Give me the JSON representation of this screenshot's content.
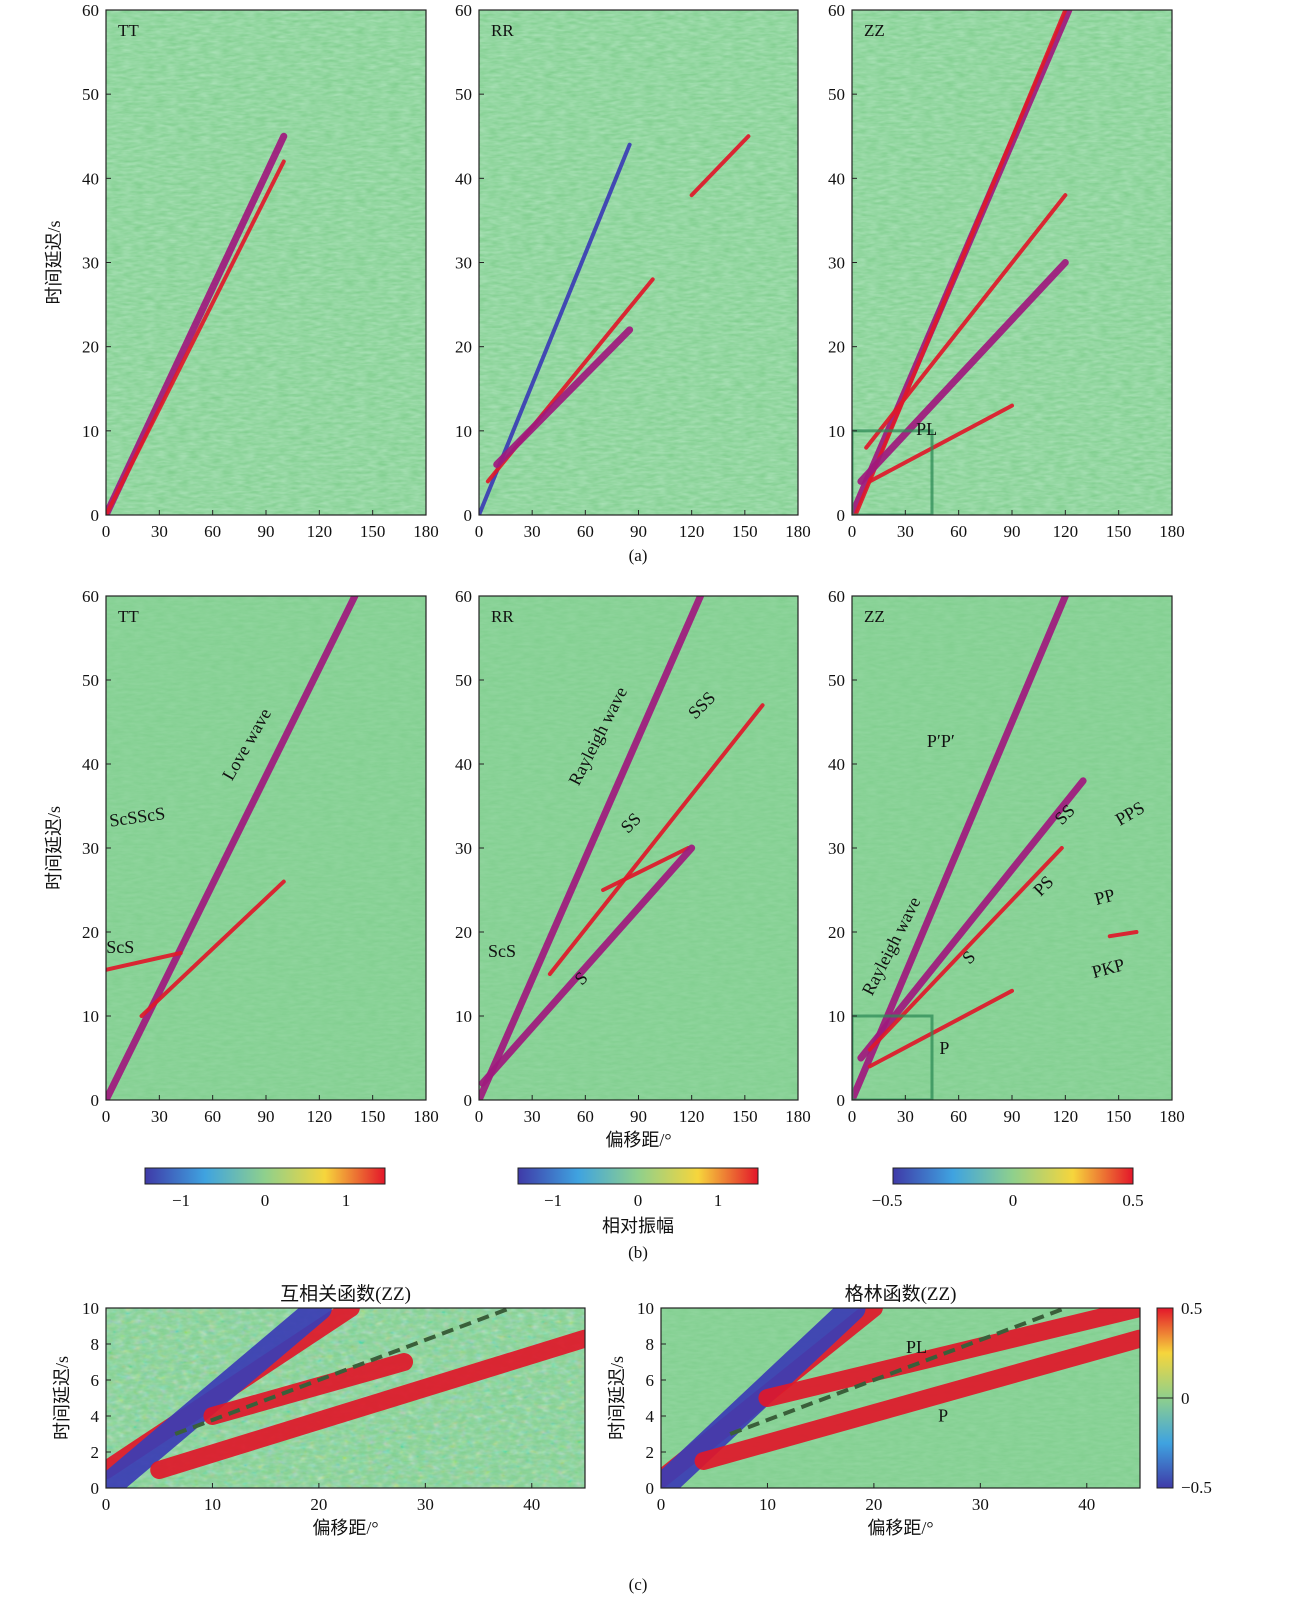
{
  "figure": {
    "subcaptions": [
      "(a)",
      "(b)",
      "(c)"
    ],
    "colors": {
      "background": "#82cf90",
      "event_red": "#e0182a",
      "event_magenta": "#a0197e",
      "event_blue": "#3b3db5",
      "annotation_box": "#2e8b57",
      "dashed_line": "#3a5f3a"
    }
  },
  "chart_data": [
    {
      "id": "a-TT",
      "type": "heatmap",
      "panel_label": "TT",
      "xlim": [
        0,
        180
      ],
      "ylim": [
        0,
        60
      ],
      "xticks": [
        0,
        30,
        60,
        90,
        120,
        150,
        180
      ],
      "yticks": [
        0,
        10,
        20,
        30,
        40,
        50,
        60
      ],
      "ylabel": "时间延迟/s",
      "xlabel": "",
      "events": [
        {
          "x": [
            0,
            100
          ],
          "y": [
            0,
            45
          ],
          "color": "magenta"
        },
        {
          "x": [
            0,
            100
          ],
          "y": [
            0,
            42
          ],
          "color": "red"
        }
      ]
    },
    {
      "id": "a-RR",
      "type": "heatmap",
      "panel_label": "RR",
      "xlim": [
        0,
        180
      ],
      "ylim": [
        0,
        60
      ],
      "xticks": [
        0,
        30,
        60,
        90,
        120,
        150,
        180
      ],
      "yticks": [
        0,
        10,
        20,
        30,
        40,
        50,
        60
      ],
      "ylabel": "",
      "xlabel": "",
      "events": [
        {
          "x": [
            0,
            85
          ],
          "y": [
            0,
            44
          ],
          "color": "blue"
        },
        {
          "x": [
            5,
            98
          ],
          "y": [
            4,
            28
          ],
          "color": "red"
        },
        {
          "x": [
            10,
            85
          ],
          "y": [
            6,
            22
          ],
          "color": "magenta"
        },
        {
          "x": [
            120,
            152
          ],
          "y": [
            38,
            45
          ],
          "color": "red"
        }
      ]
    },
    {
      "id": "a-ZZ",
      "type": "heatmap",
      "panel_label": "ZZ",
      "xlim": [
        0,
        180
      ],
      "ylim": [
        0,
        60
      ],
      "xticks": [
        0,
        30,
        60,
        90,
        120,
        150,
        180
      ],
      "yticks": [
        0,
        10,
        20,
        30,
        40,
        50,
        60
      ],
      "ylabel": "",
      "xlabel": "",
      "box": {
        "x": [
          0,
          45
        ],
        "y": [
          0,
          10
        ]
      },
      "annotations": [
        {
          "text": "PL",
          "x": 42,
          "y": 9.5,
          "rotate": 0
        }
      ],
      "events": [
        {
          "x": [
            0,
            122
          ],
          "y": [
            0,
            60
          ],
          "color": "magenta"
        },
        {
          "x": [
            2,
            120
          ],
          "y": [
            0,
            60
          ],
          "color": "red"
        },
        {
          "x": [
            8,
            120
          ],
          "y": [
            8,
            38
          ],
          "color": "red"
        },
        {
          "x": [
            5,
            120
          ],
          "y": [
            4,
            30
          ],
          "color": "magenta"
        },
        {
          "x": [
            10,
            90
          ],
          "y": [
            4,
            13
          ],
          "color": "red"
        }
      ]
    },
    {
      "id": "b-TT",
      "type": "heatmap",
      "panel_label": "TT",
      "xlim": [
        0,
        180
      ],
      "ylim": [
        0,
        60
      ],
      "xticks": [
        0,
        30,
        60,
        90,
        120,
        150,
        180
      ],
      "yticks": [
        0,
        10,
        20,
        30,
        40,
        50,
        60
      ],
      "ylabel": "时间延迟/s",
      "xlabel": "",
      "annotations": [
        {
          "text": "Love wave",
          "x": 82,
          "y": 42,
          "rotate": -60
        },
        {
          "text": "ScSScS",
          "x": 18,
          "y": 33,
          "rotate": -8
        },
        {
          "text": "ScS",
          "x": 8,
          "y": 17.5,
          "rotate": 0
        }
      ],
      "events": [
        {
          "x": [
            0,
            140
          ],
          "y": [
            0,
            60
          ],
          "color": "magenta"
        },
        {
          "x": [
            20,
            100
          ],
          "y": [
            10,
            26
          ],
          "color": "red"
        },
        {
          "x": [
            0,
            42
          ],
          "y": [
            15.5,
            17.5
          ],
          "color": "red"
        }
      ]
    },
    {
      "id": "b-RR",
      "type": "heatmap",
      "panel_label": "RR",
      "xlim": [
        0,
        180
      ],
      "ylim": [
        0,
        60
      ],
      "xticks": [
        0,
        30,
        60,
        90,
        120,
        150,
        180
      ],
      "yticks": [
        0,
        10,
        20,
        30,
        40,
        50,
        60
      ],
      "ylabel": "",
      "xlabel": "偏移距/°",
      "annotations": [
        {
          "text": "Rayleigh wave",
          "x": 70,
          "y": 43,
          "rotate": -63
        },
        {
          "text": "SSS",
          "x": 128,
          "y": 46.5,
          "rotate": -45
        },
        {
          "text": "SS",
          "x": 88,
          "y": 32.5,
          "rotate": -45
        },
        {
          "text": "ScS",
          "x": 13,
          "y": 17,
          "rotate": 0
        },
        {
          "text": "S",
          "x": 60,
          "y": 14,
          "rotate": -45
        }
      ],
      "events": [
        {
          "x": [
            0,
            125
          ],
          "y": [
            0,
            60
          ],
          "color": "magenta"
        },
        {
          "x": [
            40,
            160
          ],
          "y": [
            15,
            47
          ],
          "color": "red"
        },
        {
          "x": [
            70,
            118
          ],
          "y": [
            25,
            30
          ],
          "color": "red"
        },
        {
          "x": [
            2,
            120
          ],
          "y": [
            2,
            30
          ],
          "color": "magenta"
        }
      ]
    },
    {
      "id": "b-ZZ",
      "type": "heatmap",
      "panel_label": "ZZ",
      "xlim": [
        0,
        180
      ],
      "ylim": [
        0,
        60
      ],
      "xticks": [
        0,
        30,
        60,
        90,
        120,
        150,
        180
      ],
      "yticks": [
        0,
        10,
        20,
        30,
        40,
        50,
        60
      ],
      "ylabel": "",
      "xlabel": "",
      "box": {
        "x": [
          0,
          45
        ],
        "y": [
          0,
          10
        ]
      },
      "annotations": [
        {
          "text": "P′P′",
          "x": 50,
          "y": 42,
          "rotate": 0
        },
        {
          "text": "SS",
          "x": 122,
          "y": 33.5,
          "rotate": -45
        },
        {
          "text": "PPS",
          "x": 158,
          "y": 33.5,
          "rotate": -30
        },
        {
          "text": "PS",
          "x": 110,
          "y": 25,
          "rotate": -45
        },
        {
          "text": "PP",
          "x": 143,
          "y": 23.5,
          "rotate": -15
        },
        {
          "text": "Rayleigh wave",
          "x": 25,
          "y": 18,
          "rotate": -63
        },
        {
          "text": "S",
          "x": 68,
          "y": 16.5,
          "rotate": -45
        },
        {
          "text": "PKP",
          "x": 145,
          "y": 15,
          "rotate": -15
        },
        {
          "text": "P",
          "x": 52,
          "y": 5.5,
          "rotate": 0
        }
      ],
      "events": [
        {
          "x": [
            0,
            120
          ],
          "y": [
            0,
            60
          ],
          "color": "magenta"
        },
        {
          "x": [
            5,
            130
          ],
          "y": [
            5,
            38
          ],
          "color": "magenta"
        },
        {
          "x": [
            10,
            118
          ],
          "y": [
            6,
            30
          ],
          "color": "red"
        },
        {
          "x": [
            10,
            90
          ],
          "y": [
            4,
            13
          ],
          "color": "red"
        },
        {
          "x": [
            145,
            160
          ],
          "y": [
            19.5,
            20
          ],
          "color": "red"
        }
      ]
    },
    {
      "id": "c-CC",
      "type": "heatmap",
      "title": "互相关函数(ZZ)",
      "xlim": [
        0,
        45
      ],
      "ylim": [
        0,
        10
      ],
      "xticks": [
        0,
        10,
        20,
        30,
        40
      ],
      "yticks": [
        0,
        2,
        4,
        6,
        8,
        10
      ],
      "ylabel": "时间延迟/s",
      "xlabel": "偏移距/°",
      "dashed_line": {
        "x": [
          6.5,
          38
        ],
        "y": [
          3,
          10
        ]
      },
      "events": [
        {
          "x": [
            0,
            23
          ],
          "y": [
            1,
            10
          ],
          "color": "red"
        },
        {
          "x": [
            0,
            20
          ],
          "y": [
            0,
            10
          ],
          "color": "blue"
        },
        {
          "x": [
            10,
            28
          ],
          "y": [
            4,
            7
          ],
          "color": "red"
        },
        {
          "x": [
            5,
            45
          ],
          "y": [
            1,
            8.3
          ],
          "color": "red"
        }
      ]
    },
    {
      "id": "c-GF",
      "type": "heatmap",
      "title": "格林函数(ZZ)",
      "xlim": [
        0,
        45
      ],
      "ylim": [
        0,
        10
      ],
      "xticks": [
        0,
        10,
        20,
        30,
        40
      ],
      "yticks": [
        0,
        2,
        4,
        6,
        8,
        10
      ],
      "ylabel": "时间延迟/s",
      "xlabel": "偏移距/°",
      "dashed_line": {
        "x": [
          6.5,
          38
        ],
        "y": [
          3,
          10
        ]
      },
      "annotations": [
        {
          "text": "PL",
          "x": 24,
          "y": 7.5,
          "rotate": 0
        },
        {
          "text": "P",
          "x": 26.5,
          "y": 3.7,
          "rotate": 0
        }
      ],
      "events": [
        {
          "x": [
            0,
            20
          ],
          "y": [
            0.5,
            10
          ],
          "color": "red"
        },
        {
          "x": [
            0,
            18
          ],
          "y": [
            0,
            10
          ],
          "color": "blue"
        },
        {
          "x": [
            4,
            45
          ],
          "y": [
            1.5,
            8.3
          ],
          "color": "red"
        },
        {
          "x": [
            10,
            45
          ],
          "y": [
            5,
            10
          ],
          "color": "red"
        }
      ]
    }
  ],
  "colorbars": [
    {
      "id": "cb-TT",
      "ticks": [
        "−1",
        "0",
        "1"
      ],
      "label": ""
    },
    {
      "id": "cb-RR",
      "ticks": [
        "−1",
        "0",
        "1"
      ],
      "label": "相对振幅"
    },
    {
      "id": "cb-ZZ",
      "ticks": [
        "−0.5",
        "0",
        "0.5"
      ],
      "label": ""
    },
    {
      "id": "cb-c",
      "ticks": [
        "0.5",
        "0",
        "−0.5"
      ],
      "label": ""
    }
  ]
}
